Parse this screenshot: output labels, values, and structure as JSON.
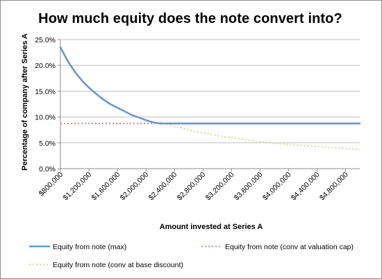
{
  "chart_data": {
    "type": "line",
    "title": "How much equity does the note convert into?",
    "xlabel": "Amount invested at Series A",
    "ylabel": "Percentage of company after Series A",
    "ylim": [
      0,
      25
    ],
    "xlim": [
      800000,
      5000000
    ],
    "y_ticks": [
      "0.0%",
      "5.0%",
      "10.0%",
      "15.0%",
      "20.0%",
      "25.0%"
    ],
    "y_tick_values": [
      0,
      5,
      10,
      15,
      20,
      25
    ],
    "x_ticks": [
      "$800,000",
      "$1,200,000",
      "$1,600,000",
      "$2,000,000",
      "$2,400,000",
      "$2,800,000",
      "$3,200,000",
      "$3,600,000",
      "$4,000,000",
      "$4,400,000",
      "$4,800,000"
    ],
    "x_tick_values": [
      800000,
      1200000,
      1600000,
      2000000,
      2400000,
      2800000,
      3200000,
      3600000,
      4000000,
      4400000,
      4800000
    ],
    "grid": "horizontal",
    "legend_position": "bottom",
    "x": [
      800000,
      900000,
      1000000,
      1100000,
      1200000,
      1300000,
      1400000,
      1500000,
      1600000,
      1700000,
      1800000,
      1900000,
      2000000,
      2100000,
      2200000,
      2300000,
      2400000,
      2500000,
      2600000,
      2700000,
      2800000,
      2900000,
      3000000,
      3100000,
      3200000,
      3300000,
      3400000,
      3500000,
      3600000,
      3700000,
      3800000,
      3900000,
      4000000,
      4100000,
      4200000,
      4300000,
      4400000,
      4500000,
      4600000,
      4700000,
      4800000,
      4900000,
      5000000
    ],
    "series": [
      {
        "name": "Equity from note (max)",
        "color": "#6f95c4",
        "style": "solid",
        "values": [
          23.5,
          20.9,
          18.8,
          17.1,
          15.7,
          14.5,
          13.4,
          12.5,
          11.8,
          11.1,
          10.4,
          9.9,
          9.4,
          8.95,
          8.75,
          8.75,
          8.75,
          8.75,
          8.75,
          8.75,
          8.75,
          8.75,
          8.75,
          8.75,
          8.75,
          8.75,
          8.75,
          8.75,
          8.75,
          8.75,
          8.75,
          8.75,
          8.75,
          8.75,
          8.75,
          8.75,
          8.75,
          8.75,
          8.75,
          8.75,
          8.75,
          8.75,
          8.75
        ]
      },
      {
        "name": "Equity from note (conv at valuation cap)",
        "color": "#d9928c",
        "style": "dotted",
        "values": [
          8.75,
          8.75,
          8.75,
          8.75,
          8.75,
          8.75,
          8.75,
          8.75,
          8.75,
          8.75,
          8.75,
          8.75,
          8.75,
          8.75,
          8.75,
          8.75,
          8.75,
          8.75,
          8.75,
          8.75,
          8.75,
          8.75,
          8.75,
          8.75,
          8.75,
          8.75,
          8.75,
          8.75,
          8.75,
          8.75,
          8.75,
          8.75,
          8.75,
          8.75,
          8.75,
          8.75,
          8.75,
          8.75,
          8.75,
          8.75,
          8.75,
          8.75,
          8.75
        ]
      },
      {
        "name": "Equity from note (conv at base discount)",
        "color": "#d6dc9e",
        "style": "dotted",
        "values": [
          null,
          null,
          null,
          null,
          null,
          null,
          null,
          null,
          null,
          null,
          null,
          null,
          null,
          null,
          9.0,
          8.6,
          8.2,
          7.9,
          7.5,
          7.2,
          6.9,
          6.7,
          6.4,
          6.2,
          6.0,
          5.8,
          5.6,
          5.4,
          5.2,
          5.1,
          4.9,
          4.8,
          4.7,
          4.6,
          4.5,
          4.4,
          4.3,
          4.2,
          4.1,
          4.0,
          3.9,
          3.8,
          3.7
        ]
      }
    ]
  }
}
